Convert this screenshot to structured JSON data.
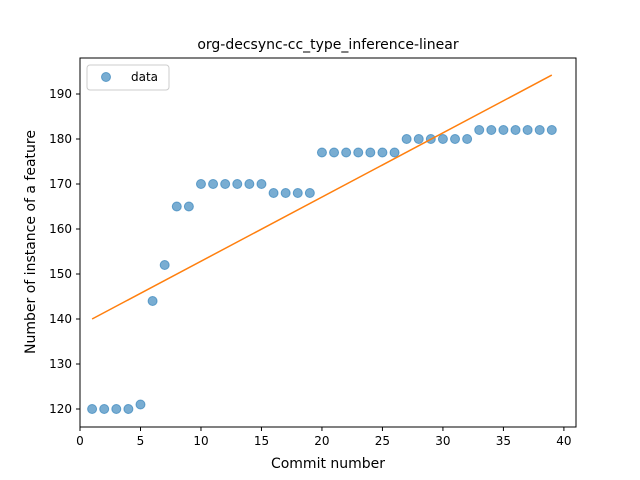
{
  "chart_data": {
    "type": "scatter",
    "title": "org-decsync-cc_type_inference-linear",
    "xlabel": "Commit number",
    "ylabel": "Number of instance of a feature",
    "xlim": [
      0,
      41
    ],
    "ylim": [
      116,
      198
    ],
    "xticks": [
      0,
      5,
      10,
      15,
      20,
      25,
      30,
      35,
      40
    ],
    "yticks": [
      120,
      130,
      140,
      150,
      160,
      170,
      180,
      190
    ],
    "grid": false,
    "legend": {
      "placement": "top-left",
      "entries": [
        "data"
      ]
    },
    "series": [
      {
        "name": "data",
        "kind": "scatter",
        "color": "#1f77b4",
        "x": [
          1,
          2,
          3,
          4,
          5,
          6,
          7,
          8,
          9,
          10,
          11,
          12,
          13,
          14,
          15,
          16,
          17,
          18,
          19,
          20,
          21,
          22,
          23,
          24,
          25,
          26,
          27,
          28,
          29,
          30,
          31,
          32,
          33,
          34,
          35,
          36,
          37,
          38,
          39
        ],
        "y": [
          120,
          120,
          120,
          120,
          121,
          144,
          152,
          165,
          165,
          170,
          170,
          170,
          170,
          170,
          170,
          168,
          168,
          168,
          168,
          177,
          177,
          177,
          177,
          177,
          177,
          177,
          180,
          180,
          180,
          180,
          180,
          180,
          182,
          182,
          182,
          182,
          182,
          182,
          182
        ]
      },
      {
        "kind": "line",
        "color": "#ff7f0e",
        "x": [
          1,
          39
        ],
        "y": [
          140,
          194.2
        ]
      }
    ]
  }
}
